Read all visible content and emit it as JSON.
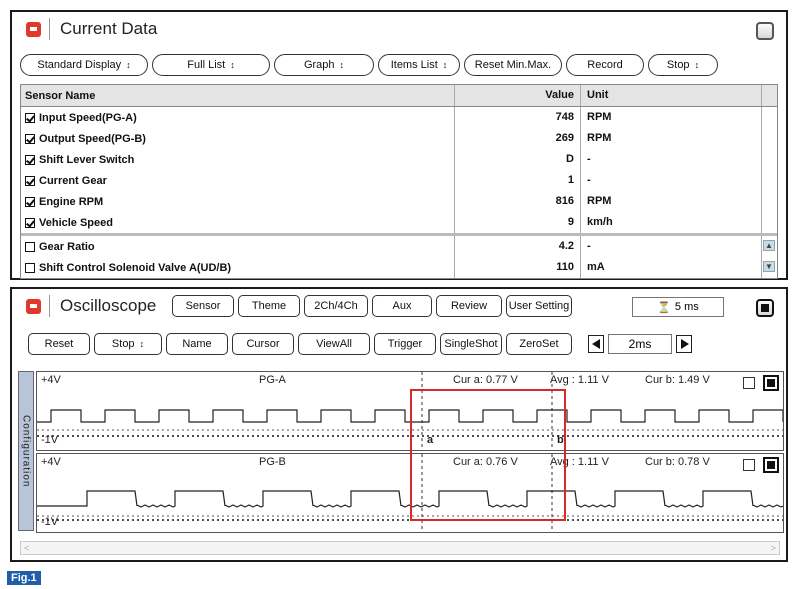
{
  "current_data": {
    "title": "Current Data",
    "toolbar": [
      {
        "label": "Standard Display",
        "arrow": "↕",
        "w": 128
      },
      {
        "label": "Full List",
        "arrow": "↕",
        "w": 118
      },
      {
        "label": "Graph",
        "arrow": "↕",
        "w": 100
      },
      {
        "label": "Items List",
        "arrow": "↕",
        "w": 82
      },
      {
        "label": "Reset Min.Max.",
        "arrow": "",
        "w": 98
      },
      {
        "label": "Record",
        "arrow": "",
        "w": 78
      },
      {
        "label": "Stop",
        "arrow": "↕",
        "w": 70
      }
    ],
    "columns": {
      "name": "Sensor Name",
      "value": "Value",
      "unit": "Unit"
    },
    "rows": [
      {
        "name": "Input Speed(PG-A)",
        "value": "748",
        "unit": "RPM",
        "checked": true
      },
      {
        "name": "Output Speed(PG-B)",
        "value": "269",
        "unit": "RPM",
        "checked": true
      },
      {
        "name": "Shift Lever Switch",
        "value": "D",
        "unit": "-",
        "checked": true
      },
      {
        "name": "Current Gear",
        "value": "1",
        "unit": "-",
        "checked": true
      },
      {
        "name": "Engine RPM",
        "value": "816",
        "unit": "RPM",
        "checked": true
      },
      {
        "name": "Vehicle Speed",
        "value": "9",
        "unit": "km/h",
        "checked": true
      }
    ],
    "rows2": [
      {
        "name": "Gear Ratio",
        "value": "4.2",
        "unit": "-",
        "checked": false
      },
      {
        "name": "Shift Control Solenoid Valve A(UD/B)",
        "value": "110",
        "unit": "mA",
        "checked": false
      }
    ]
  },
  "oscilloscope": {
    "title": "Oscilloscope",
    "toolbar1": [
      "Sensor",
      "Theme",
      "2Ch/4Ch",
      "Aux",
      "Review",
      "User Setting"
    ],
    "timebase": "5 ms",
    "toolbar2": [
      "Reset",
      "Stop",
      "Name",
      "Cursor",
      "ViewAll",
      "Trigger",
      "SingleShot",
      "ZeroSet"
    ],
    "time_div": "2ms",
    "config_label": "Configuration",
    "channels": [
      {
        "name": "PG-A",
        "top": "+4V",
        "bottom": "-1V",
        "cur_a": "Cur a: 0.77 V",
        "avg": "Avg : 1.11 V",
        "cur_b": "Cur b: 1.49 V",
        "cursor_a": "a",
        "cursor_b": "b"
      },
      {
        "name": "PG-B",
        "top": "+4V",
        "bottom": "-1V",
        "cur_a": "Cur a: 0.76 V",
        "avg": "Avg : 1.11 V",
        "cur_b": "Cur b: 0.78 V"
      }
    ]
  },
  "figure_label": "Fig.1",
  "colors": {
    "highlight_box": "#d42a2a",
    "fig_label_bg": "#1e5fa8"
  }
}
